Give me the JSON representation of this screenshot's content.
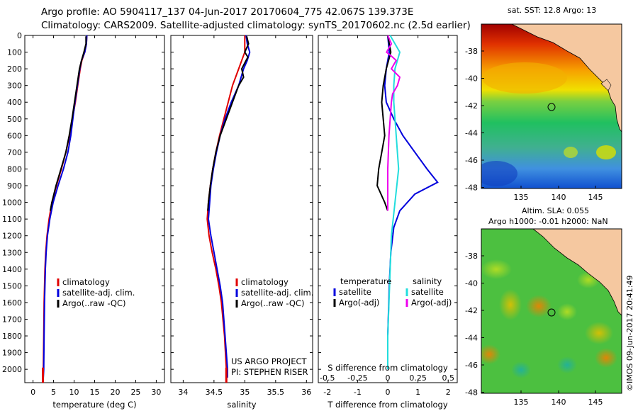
{
  "header": {
    "line1": "Argo profile: AO 5904117_137 04-Jun-2017 20170604_775 42.067S 139.373E",
    "line2": "Climatology: CARS2009. Satellite-adjusted climatology: synTS_20170602.nc (2.5d earlier)"
  },
  "colors": {
    "climatology": "#e00000",
    "satellite": "#0000dd",
    "argo": "#000000",
    "salinity_sat": "#22dddd",
    "salinity_argo": "#ee00ee",
    "land": "#f5c8a0"
  },
  "maps": {
    "sst": {
      "title": "sat. SST: 12.8 Argo: 13",
      "x_ticks": [
        "135",
        "140",
        "145"
      ],
      "y_ticks": [
        "-38",
        "-40",
        "-42",
        "-44",
        "-46",
        "-48"
      ]
    },
    "sla": {
      "title1": "Altim. SLA: 0.055",
      "title2": "Argo h1000: -0.01 h2000: NaN",
      "x_ticks": [
        "135",
        "140",
        "145"
      ],
      "y_ticks": [
        "-38",
        "-40",
        "-42",
        "-44",
        "-46",
        "-48"
      ]
    }
  },
  "imos_stamp": "©IMOS 09-Jun-2017 20:41:49",
  "chart_data": [
    {
      "type": "line",
      "xlabel": "temperature (deg C)",
      "ylabel": "",
      "xlim": [
        -2,
        32
      ],
      "ylim": [
        2080,
        0
      ],
      "x_ticks": [
        0,
        5,
        10,
        15,
        20,
        25,
        30
      ],
      "y_ticks": [
        0,
        100,
        200,
        300,
        400,
        500,
        600,
        700,
        800,
        900,
        1000,
        1100,
        1200,
        1300,
        1400,
        1500,
        1600,
        1700,
        1800,
        1900,
        2000
      ],
      "legend": [
        "climatology",
        "satellite-adj. clim.",
        "Argo(..raw -QC)"
      ],
      "series": [
        {
          "name": "climatology",
          "depth": [
            0,
            50,
            100,
            150,
            200,
            300,
            400,
            500,
            600,
            700,
            800,
            900,
            1000,
            1100,
            1200,
            1300,
            1400,
            1500,
            1600,
            1800,
            2000,
            2050
          ],
          "values": [
            13.1,
            13.0,
            12.6,
            11.9,
            11.5,
            10.9,
            10.3,
            9.6,
            8.9,
            8.0,
            6.9,
            5.7,
            4.6,
            3.9,
            3.4,
            3.1,
            2.9,
            2.8,
            2.7,
            2.6,
            2.5,
            2.4
          ]
        },
        {
          "name": "satellite-adj. clim.",
          "depth": [
            0,
            50,
            100,
            150,
            200,
            300,
            400,
            500,
            600,
            700,
            800,
            900,
            1000,
            1100,
            1200,
            1300,
            1400,
            1500,
            1600,
            1800,
            2000,
            2050
          ],
          "values": [
            13.1,
            13.0,
            12.6,
            11.8,
            11.4,
            10.8,
            10.2,
            9.7,
            9.2,
            8.5,
            7.4,
            6.1,
            4.9,
            4.1,
            3.5,
            3.2,
            3.0,
            2.9,
            2.8,
            2.7,
            2.6,
            2.5
          ]
        },
        {
          "name": "Argo(..raw -QC)",
          "depth": [
            5,
            50,
            100,
            150,
            200,
            300,
            400,
            500,
            600,
            700,
            800,
            900,
            1000,
            1050
          ],
          "values": [
            12.9,
            12.9,
            12.4,
            11.8,
            11.3,
            10.7,
            10.1,
            9.5,
            8.8,
            8.0,
            6.8,
            5.6,
            4.6,
            4.2
          ]
        }
      ]
    },
    {
      "type": "line",
      "xlabel": "salinity",
      "ylabel": "",
      "xlim": [
        33.8,
        36.1
      ],
      "ylim": [
        2080,
        0
      ],
      "x_ticks": [
        34,
        34.5,
        35,
        35.5,
        36
      ],
      "legend": [
        "climatology",
        "satellite-adj. clim.",
        "Argo(..raw -QC)"
      ],
      "annotations": [
        "US ARGO PROJECT",
        "PI: STEPHEN RISER"
      ],
      "series": [
        {
          "name": "climatology",
          "depth": [
            0,
            50,
            100,
            150,
            200,
            300,
            400,
            500,
            600,
            700,
            800,
            900,
            1000,
            1100,
            1200,
            1300,
            1400,
            1500,
            1600,
            1800,
            2000,
            2050
          ],
          "values": [
            35.0,
            35.0,
            35.0,
            34.95,
            34.9,
            34.8,
            34.73,
            34.66,
            34.59,
            34.53,
            34.48,
            34.44,
            34.41,
            34.39,
            34.42,
            34.47,
            34.53,
            34.58,
            34.62,
            34.67,
            34.7,
            34.7
          ]
        },
        {
          "name": "satellite-adj. clim.",
          "depth": [
            0,
            50,
            100,
            150,
            200,
            300,
            400,
            500,
            600,
            700,
            800,
            900,
            1000,
            1100,
            1200,
            1300,
            1400,
            1500,
            1600,
            1800,
            2000,
            2050
          ],
          "values": [
            35.02,
            35.04,
            35.08,
            35.04,
            34.98,
            34.9,
            34.78,
            34.68,
            34.6,
            34.54,
            34.49,
            34.45,
            34.43,
            34.41,
            34.45,
            34.5,
            34.55,
            34.6,
            34.64,
            34.68,
            34.72,
            34.72
          ]
        },
        {
          "name": "Argo(..raw -QC)",
          "depth": [
            5,
            50,
            100,
            130,
            150,
            200,
            250,
            300,
            350,
            400,
            500,
            600,
            700,
            800,
            900,
            1000,
            1050
          ],
          "values": [
            35.03,
            35.06,
            35.0,
            35.05,
            35.02,
            34.95,
            34.98,
            34.9,
            34.85,
            34.8,
            34.7,
            34.6,
            34.53,
            34.48,
            34.44,
            34.41,
            34.4
          ]
        }
      ]
    },
    {
      "type": "line",
      "xlabel": "T difference from climatology",
      "x2label": "S difference from climatology",
      "xlim": [
        -2.3,
        2.3
      ],
      "x_ticks": [
        -2,
        -1,
        0,
        1,
        2
      ],
      "x2_ticks": [
        "-0.5",
        "-0.25",
        "0",
        "0.25",
        "0.5"
      ],
      "legend_headers": [
        "temperature",
        "salinity"
      ],
      "legend": [
        "satellite",
        "Argo(-adj)",
        "satellite",
        "Argo(-adj)"
      ],
      "series": [
        {
          "name": "temperature satellite",
          "depth": [
            0,
            100,
            200,
            300,
            400,
            500,
            600,
            700,
            800,
            880,
            950,
            1050,
            1150,
            1300,
            1500,
            1800,
            2000
          ],
          "values": [
            0.0,
            0.05,
            -0.05,
            -0.1,
            -0.05,
            0.2,
            0.5,
            0.9,
            1.3,
            1.65,
            0.9,
            0.4,
            0.2,
            0.1,
            0.05,
            0.0,
            0.0
          ]
        },
        {
          "name": "temperature Argo(-adj)",
          "depth": [
            0,
            100,
            200,
            300,
            400,
            500,
            600,
            700,
            800,
            900,
            1000,
            1050
          ],
          "values": [
            0.0,
            0.1,
            -0.05,
            -0.15,
            -0.2,
            -0.15,
            -0.1,
            -0.2,
            -0.3,
            -0.35,
            -0.1,
            0.0
          ]
        },
        {
          "name": "salinity satellite",
          "depth": [
            0,
            100,
            200,
            300,
            400,
            600,
            800,
            1000,
            1200,
            1400,
            1600,
            1800,
            2000
          ],
          "values": [
            0.02,
            0.1,
            0.06,
            0.05,
            0.05,
            0.07,
            0.09,
            0.06,
            0.03,
            0.02,
            0.01,
            0.0,
            0.0
          ]
        },
        {
          "name": "salinity Argo(-adj)",
          "depth": [
            0,
            50,
            100,
            130,
            150,
            200,
            250,
            300,
            350,
            400,
            600,
            800,
            1000,
            1050
          ],
          "values": [
            0.0,
            0.03,
            -0.01,
            0.04,
            0.07,
            0.03,
            0.1,
            0.08,
            0.04,
            0.03,
            0.01,
            0.0,
            0.0,
            0.0
          ]
        }
      ]
    }
  ]
}
